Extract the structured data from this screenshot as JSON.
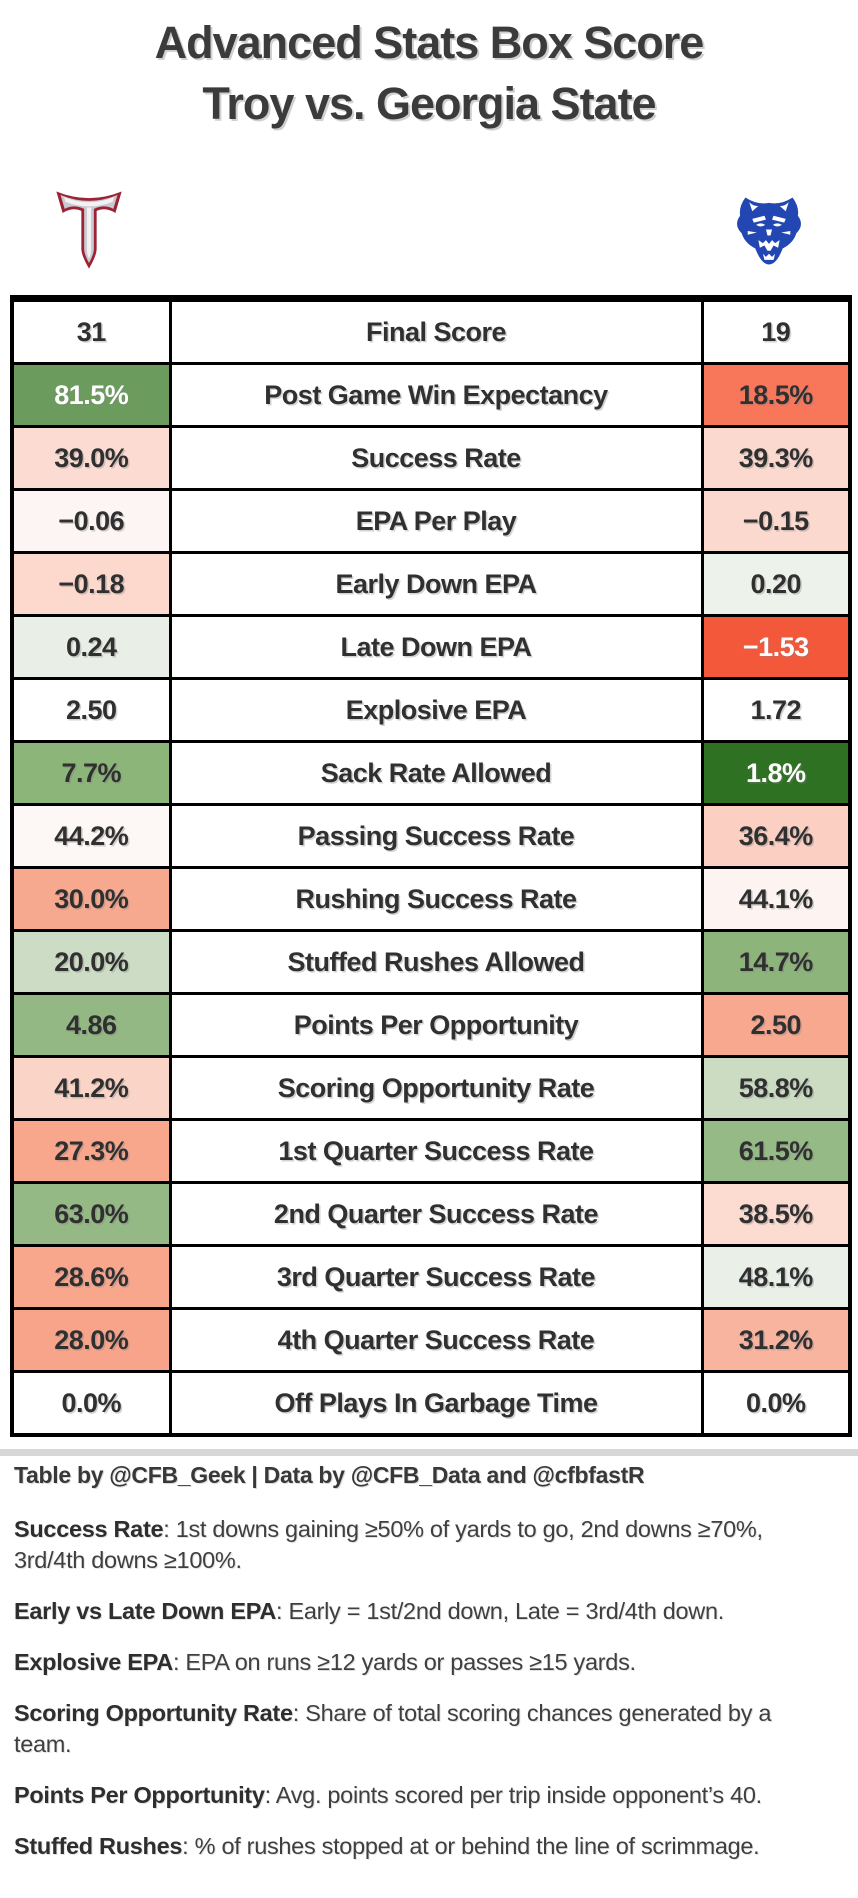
{
  "title": {
    "line1": "Advanced Stats Box Score",
    "line2": "Troy vs. Georgia State"
  },
  "teams": {
    "left": {
      "name": "Troy",
      "logo": "troy-power-t",
      "colors": {
        "maroon": "#9b2335",
        "silver": "#c9c9cf"
      }
    },
    "right": {
      "name": "Georgia State",
      "logo": "georgia-state-panther",
      "colors": {
        "blue": "#2347b2"
      }
    }
  },
  "chart_data": {
    "type": "table",
    "title": "Advanced Stats Box Score — Troy vs. Georgia State",
    "columns": [
      "Troy",
      "Metric",
      "Georgia State"
    ],
    "rows": [
      {
        "metric": "Final Score",
        "troy": 31,
        "georgia_state": 19
      },
      {
        "metric": "Post Game Win Expectancy",
        "troy": "81.5%",
        "georgia_state": "18.5%"
      },
      {
        "metric": "Success Rate",
        "troy": "39.0%",
        "georgia_state": "39.3%"
      },
      {
        "metric": "EPA Per Play",
        "troy": -0.06,
        "georgia_state": -0.15
      },
      {
        "metric": "Early Down EPA",
        "troy": -0.18,
        "georgia_state": 0.2
      },
      {
        "metric": "Late Down EPA",
        "troy": 0.24,
        "georgia_state": -1.53
      },
      {
        "metric": "Explosive EPA",
        "troy": 2.5,
        "georgia_state": 1.72
      },
      {
        "metric": "Sack Rate Allowed",
        "troy": "7.7%",
        "georgia_state": "1.8%"
      },
      {
        "metric": "Passing Success Rate",
        "troy": "44.2%",
        "georgia_state": "36.4%"
      },
      {
        "metric": "Rushing Success Rate",
        "troy": "30.0%",
        "georgia_state": "44.1%"
      },
      {
        "metric": "Stuffed Rushes Allowed",
        "troy": "20.0%",
        "georgia_state": "14.7%"
      },
      {
        "metric": "Points Per Opportunity",
        "troy": 4.86,
        "georgia_state": 2.5
      },
      {
        "metric": "Scoring Opportunity Rate",
        "troy": "41.2%",
        "georgia_state": "58.8%"
      },
      {
        "metric": "1st Quarter Success Rate",
        "troy": "27.3%",
        "georgia_state": "61.5%"
      },
      {
        "metric": "2nd Quarter Success Rate",
        "troy": "63.0%",
        "georgia_state": "38.5%"
      },
      {
        "metric": "3rd Quarter Success Rate",
        "troy": "28.6%",
        "georgia_state": "48.1%"
      },
      {
        "metric": "4th Quarter Success Rate",
        "troy": "28.0%",
        "georgia_state": "31.2%"
      },
      {
        "metric": "Off Plays In Garbage Time",
        "troy": "0.0%",
        "georgia_state": "0.0%"
      }
    ]
  },
  "table": {
    "rows": [
      {
        "label": "Final Score",
        "left": {
          "value": "31",
          "bg": "#ffffff",
          "fg": "#303030"
        },
        "right": {
          "value": "19",
          "bg": "#ffffff",
          "fg": "#303030"
        }
      },
      {
        "label": "Post Game Win Expectancy",
        "left": {
          "value": "81.5%",
          "bg": "#6b9c5d",
          "fg": "#ffffff"
        },
        "right": {
          "value": "18.5%",
          "bg": "#f8775b",
          "fg": "#303030"
        }
      },
      {
        "label": "Success Rate",
        "left": {
          "value": "39.0%",
          "bg": "#fcdcd2",
          "fg": "#303030"
        },
        "right": {
          "value": "39.3%",
          "bg": "#fbd9ce",
          "fg": "#303030"
        }
      },
      {
        "label": "EPA Per Play",
        "left": {
          "value": "−0.06",
          "bg": "#fdf5f3",
          "fg": "#303030"
        },
        "right": {
          "value": "−0.15",
          "bg": "#fbd9ce",
          "fg": "#303030"
        }
      },
      {
        "label": "Early Down EPA",
        "left": {
          "value": "−0.18",
          "bg": "#fcd8cd",
          "fg": "#303030"
        },
        "right": {
          "value": "0.20",
          "bg": "#edf2ea",
          "fg": "#303030"
        }
      },
      {
        "label": "Late Down EPA",
        "left": {
          "value": "0.24",
          "bg": "#e9efe7",
          "fg": "#303030"
        },
        "right": {
          "value": "−1.53",
          "bg": "#f4583a",
          "fg": "#ffffff"
        }
      },
      {
        "label": "Explosive EPA",
        "left": {
          "value": "2.50",
          "bg": "#ffffff",
          "fg": "#303030"
        },
        "right": {
          "value": "1.72",
          "bg": "#ffffff",
          "fg": "#303030"
        }
      },
      {
        "label": "Sack Rate Allowed",
        "left": {
          "value": "7.7%",
          "bg": "#8cb57a",
          "fg": "#303030"
        },
        "right": {
          "value": "1.8%",
          "bg": "#2e7122",
          "fg": "#ffffff"
        }
      },
      {
        "label": "Passing Success Rate",
        "left": {
          "value": "44.2%",
          "bg": "#fdf7f5",
          "fg": "#303030"
        },
        "right": {
          "value": "36.4%",
          "bg": "#fbcfc2",
          "fg": "#303030"
        }
      },
      {
        "label": "Rushing Success Rate",
        "left": {
          "value": "30.0%",
          "bg": "#f7a98f",
          "fg": "#303030"
        },
        "right": {
          "value": "44.1%",
          "bg": "#fdf4f1",
          "fg": "#303030"
        }
      },
      {
        "label": "Stuffed Rushes Allowed",
        "left": {
          "value": "20.0%",
          "bg": "#ccdcc5",
          "fg": "#303030"
        },
        "right": {
          "value": "14.7%",
          "bg": "#8db47b",
          "fg": "#303030"
        }
      },
      {
        "label": "Points Per Opportunity",
        "left": {
          "value": "4.86",
          "bg": "#93b883",
          "fg": "#303030"
        },
        "right": {
          "value": "2.50",
          "bg": "#f8a88f",
          "fg": "#303030"
        }
      },
      {
        "label": "Scoring Opportunity Rate",
        "left": {
          "value": "41.2%",
          "bg": "#fbd4c8",
          "fg": "#303030"
        },
        "right": {
          "value": "58.8%",
          "bg": "#cbdcc3",
          "fg": "#303030"
        }
      },
      {
        "label": "1st Quarter Success Rate",
        "left": {
          "value": "27.3%",
          "bg": "#f8a78d",
          "fg": "#303030"
        },
        "right": {
          "value": "61.5%",
          "bg": "#95ba86",
          "fg": "#303030"
        }
      },
      {
        "label": "2nd Quarter Success Rate",
        "left": {
          "value": "63.0%",
          "bg": "#94b985",
          "fg": "#303030"
        },
        "right": {
          "value": "38.5%",
          "bg": "#fcdbd1",
          "fg": "#303030"
        }
      },
      {
        "label": "3rd Quarter Success Rate",
        "left": {
          "value": "28.6%",
          "bg": "#f8a78d",
          "fg": "#303030"
        },
        "right": {
          "value": "48.1%",
          "bg": "#eaf0e8",
          "fg": "#303030"
        }
      },
      {
        "label": "4th Quarter Success Rate",
        "left": {
          "value": "28.0%",
          "bg": "#f8a48a",
          "fg": "#303030"
        },
        "right": {
          "value": "31.2%",
          "bg": "#f9b4a0",
          "fg": "#303030"
        }
      },
      {
        "label": "Off Plays In Garbage Time",
        "left": {
          "value": "0.0%",
          "bg": "#ffffff",
          "fg": "#303030"
        },
        "right": {
          "value": "0.0%",
          "bg": "#ffffff",
          "fg": "#303030"
        }
      }
    ]
  },
  "footer": {
    "credit": "Table by @CFB_Geek | Data by @CFB_Data and @cfbfastR",
    "notes": [
      {
        "term": "Success Rate",
        "definition": ": 1st downs gaining ≥50% of yards to go, 2nd downs ≥70%, 3rd/4th downs ≥100%."
      },
      {
        "term": "Early vs Late Down EPA",
        "definition": ": Early = 1st/2nd down, Late = 3rd/4th down."
      },
      {
        "term": "Explosive EPA",
        "definition": ": EPA on runs ≥12 yards or passes ≥15 yards."
      },
      {
        "term": "Scoring Opportunity Rate",
        "definition": ": Share of total scoring chances generated by a team."
      },
      {
        "term": "Points Per Opportunity",
        "definition": ": Avg. points scored per trip inside opponent’s 40."
      },
      {
        "term": "Stuffed Rushes",
        "definition": ": % of rushes stopped at or behind the line of scrimmage."
      }
    ]
  }
}
